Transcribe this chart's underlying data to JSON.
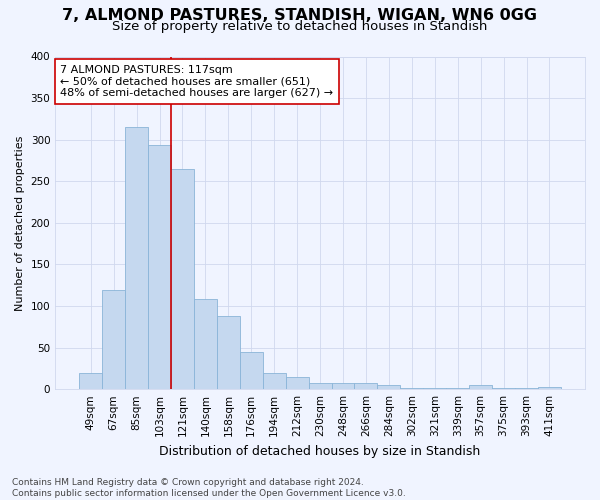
{
  "title1": "7, ALMOND PASTURES, STANDISH, WIGAN, WN6 0GG",
  "title2": "Size of property relative to detached houses in Standish",
  "xlabel": "Distribution of detached houses by size in Standish",
  "ylabel": "Number of detached properties",
  "bar_labels": [
    "49sqm",
    "67sqm",
    "85sqm",
    "103sqm",
    "121sqm",
    "140sqm",
    "158sqm",
    "176sqm",
    "194sqm",
    "212sqm",
    "230sqm",
    "248sqm",
    "266sqm",
    "284sqm",
    "302sqm",
    "321sqm",
    "339sqm",
    "357sqm",
    "375sqm",
    "393sqm",
    "411sqm"
  ],
  "bar_values": [
    19,
    119,
    315,
    293,
    265,
    109,
    88,
    45,
    20,
    15,
    8,
    8,
    8,
    5,
    2,
    1,
    1,
    5,
    2,
    1,
    3
  ],
  "bar_color": "#c5d8ef",
  "bar_edge_color": "#8ab4d8",
  "vline_index": 4,
  "vline_color": "#cc0000",
  "annotation_title": "7 ALMOND PASTURES: 117sqm",
  "annotation_line1": "← 50% of detached houses are smaller (651)",
  "annotation_line2": "48% of semi-detached houses are larger (627) →",
  "annotation_box_edge": "#cc0000",
  "ylim": [
    0,
    400
  ],
  "yticks": [
    0,
    50,
    100,
    150,
    200,
    250,
    300,
    350,
    400
  ],
  "bg_color": "#f0f4ff",
  "grid_color": "#d0d8ee",
  "footer_line1": "Contains HM Land Registry data © Crown copyright and database right 2024.",
  "footer_line2": "Contains public sector information licensed under the Open Government Licence v3.0.",
  "title1_fontsize": 11.5,
  "title2_fontsize": 9.5,
  "ylabel_fontsize": 8,
  "xlabel_fontsize": 9,
  "tick_fontsize": 7.5,
  "annot_fontsize": 8,
  "footer_fontsize": 6.5
}
